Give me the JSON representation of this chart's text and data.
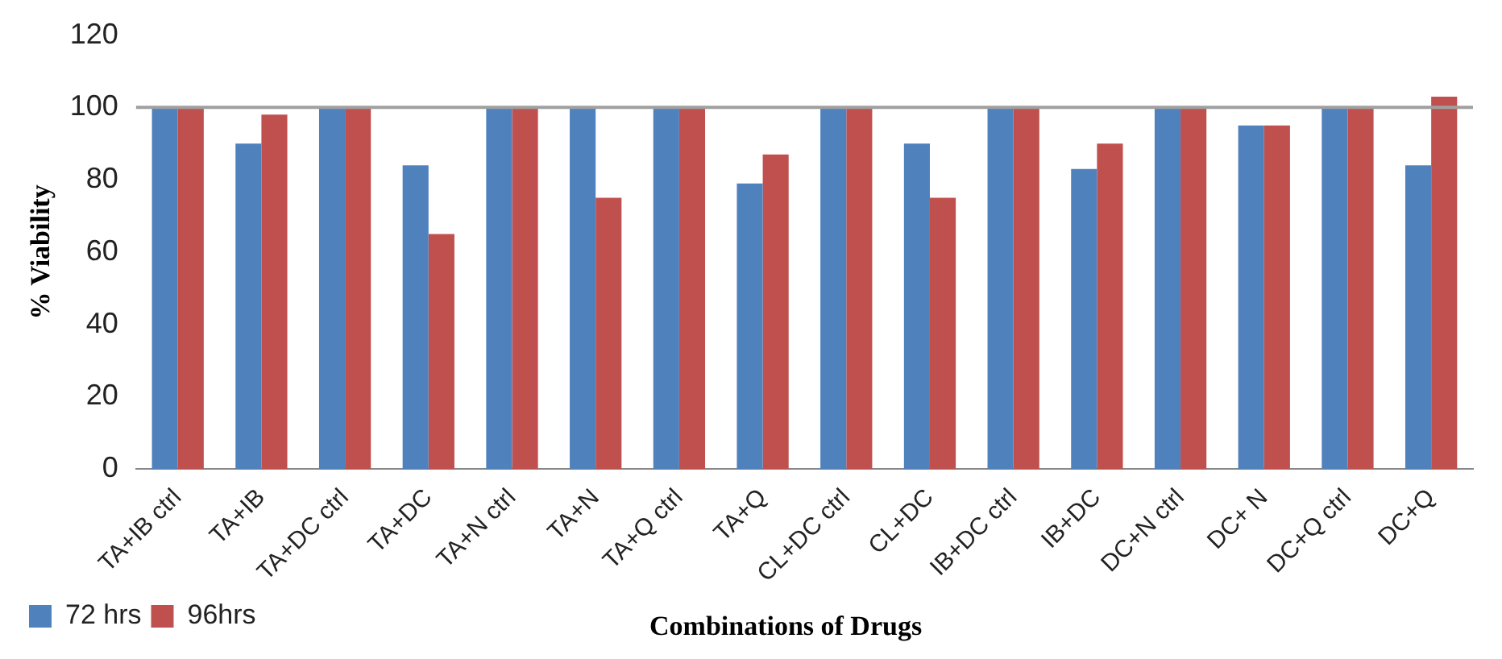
{
  "chart_data": {
    "type": "bar",
    "xlabel": "Combinations of Drugs",
    "ylabel": "% Viability",
    "categories": [
      "TA+IB ctrl",
      "TA+IB",
      "TA+DC ctrl",
      "TA+DC",
      "TA+N ctrl",
      "TA+N",
      "TA+Q ctrl",
      "TA+Q",
      "CL+DC ctrl",
      "CL+DC",
      "IB+DC ctrl",
      "IB+DC",
      "DC+N ctrl",
      "DC+ N",
      "DC+Q ctrl",
      "DC+Q"
    ],
    "series": [
      {
        "name": "72 hrs",
        "color": "#4f81bd",
        "values": [
          100,
          90,
          100,
          84,
          100,
          100,
          100,
          79,
          100,
          90,
          100,
          83,
          100,
          95,
          100,
          84
        ]
      },
      {
        "name": "96hrs",
        "color": "#c0504d",
        "values": [
          100,
          98,
          100,
          65,
          100,
          75,
          100,
          87,
          100,
          75,
          100,
          90,
          100,
          95,
          100,
          103
        ]
      }
    ],
    "ylim": [
      0,
      120
    ],
    "yticks": [
      0,
      20,
      40,
      60,
      80,
      100,
      120
    ],
    "grid": false,
    "legend": "bottom left",
    "ref_lines": [
      {
        "axis": "y",
        "value": 100,
        "color": "#a0a0a0"
      }
    ]
  }
}
